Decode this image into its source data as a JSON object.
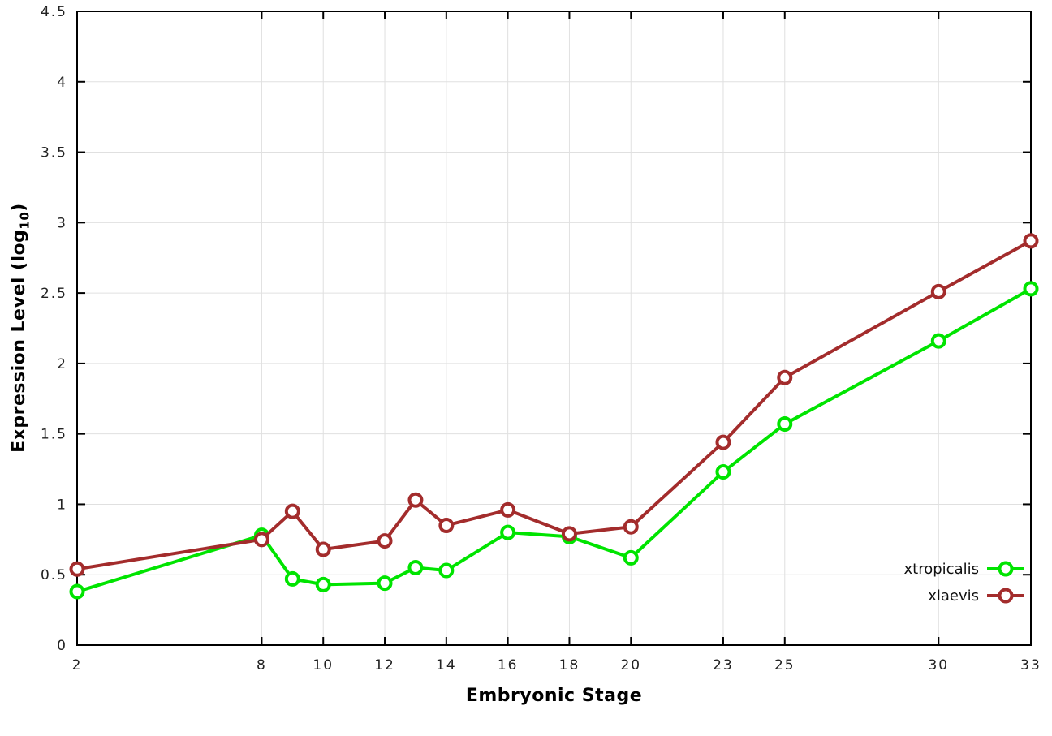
{
  "chart_data": {
    "type": "line",
    "title": "",
    "xlabel": "Embryonic Stage",
    "ylabel": "Expression Level (log10)",
    "ylabel_parts": {
      "main": "Expression Level (log",
      "sub": "10",
      "end": ")"
    },
    "xlim": [
      2,
      33
    ],
    "ylim": [
      0,
      4.5
    ],
    "x_ticks": [
      2,
      8,
      10,
      12,
      14,
      16,
      18,
      20,
      23,
      25,
      30,
      33
    ],
    "x_tick_labels": [
      "2",
      "8",
      "10",
      "12",
      "14",
      "16",
      "18",
      "20",
      "23",
      "25",
      "30",
      "33"
    ],
    "y_ticks": [
      0,
      0.5,
      1,
      1.5,
      2,
      2.5,
      3,
      3.5,
      4,
      4.5
    ],
    "y_tick_labels": [
      "0",
      "0.5",
      "1",
      "1.5",
      "2",
      "2.5",
      "3",
      "3.5",
      "4",
      "4.5"
    ],
    "grid": true,
    "legend_position": "bottom-right",
    "x": [
      2,
      8,
      9,
      10,
      12,
      13,
      14,
      16,
      18,
      20,
      23,
      25,
      30,
      33
    ],
    "series": [
      {
        "name": "xtropicalis",
        "color": "#00e400",
        "values": [
          0.38,
          0.78,
          0.47,
          0.43,
          0.44,
          0.55,
          0.53,
          0.8,
          0.77,
          0.62,
          1.23,
          1.57,
          2.16,
          2.53
        ]
      },
      {
        "name": "xlaevis",
        "color": "#a32c2c",
        "values": [
          0.54,
          0.75,
          0.95,
          0.68,
          0.74,
          1.03,
          0.85,
          0.96,
          0.79,
          0.84,
          1.44,
          1.9,
          2.51,
          2.87
        ]
      }
    ],
    "colors": {
      "grid": "#e0e0e0",
      "frame": "#000000"
    }
  }
}
